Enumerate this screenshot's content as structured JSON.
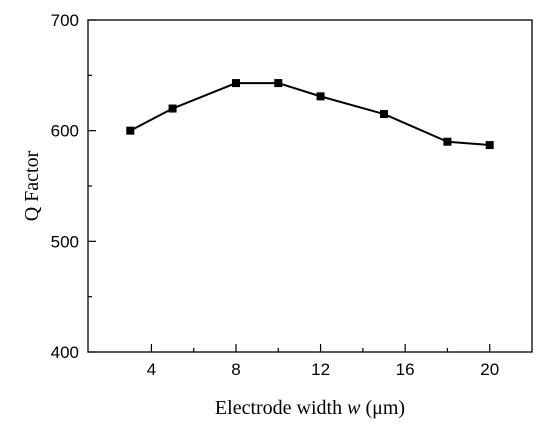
{
  "chart_data": {
    "type": "line",
    "xlabel_parts": [
      "Electrode width ",
      "w",
      " (μm)"
    ],
    "ylabel": "Q Factor",
    "x": [
      3,
      5,
      8,
      10,
      12,
      15,
      18,
      20
    ],
    "series": [
      {
        "values": [
          600,
          620,
          643,
          643,
          631,
          615,
          590,
          587
        ],
        "color": "#000000",
        "marker": "square"
      }
    ],
    "xlim": [
      1,
      22
    ],
    "ylim": [
      400,
      700
    ],
    "xticks": [
      4,
      8,
      12,
      16,
      20
    ],
    "yticks": [
      400,
      500,
      600,
      700
    ],
    "grid": false,
    "legend": "none"
  }
}
